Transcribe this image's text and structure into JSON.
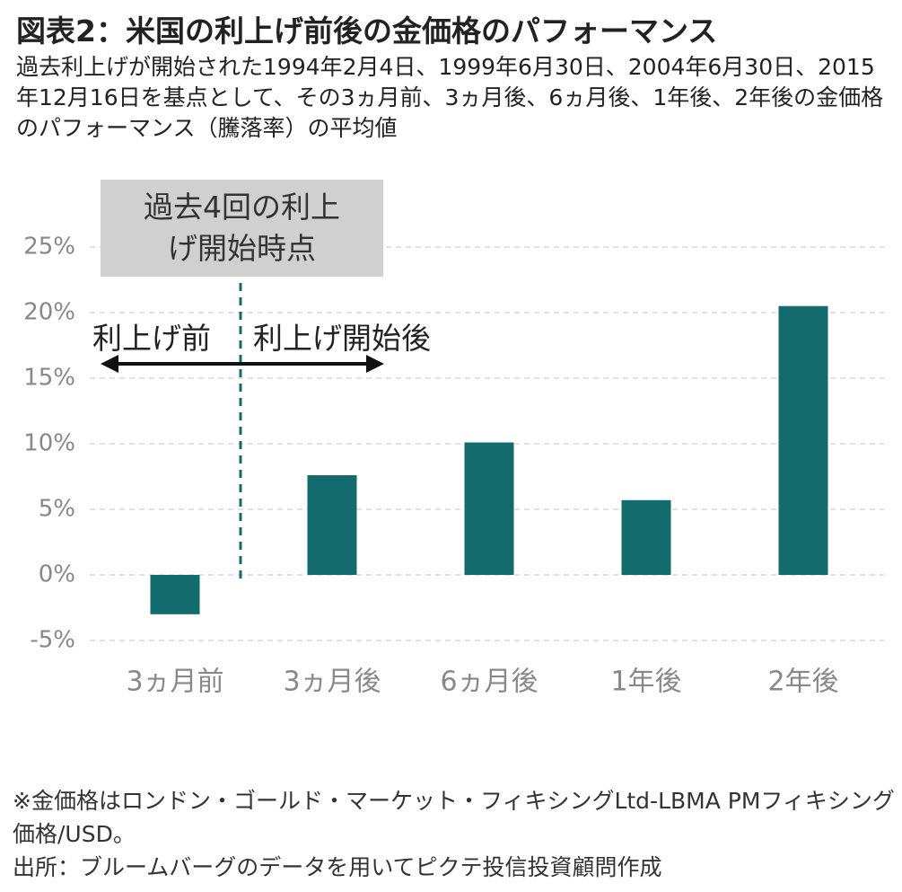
{
  "chart_data": {
    "type": "bar",
    "title": "図表2：米国の利上げ前後の金価格のパフォーマンス",
    "subtitle": "過去利上げが開始された1994年2月4日、1999年6月30日、2004年6月30日、2015年12月16日を基点として、その3ヵ月前、3ヵ月後、6ヵ月後、1年後、2年後の金価格のパフォーマンス（騰落率）の平均値",
    "categories": [
      "3ヵ月前",
      "3ヵ月後",
      "6ヵ月後",
      "1年後",
      "2年後"
    ],
    "values": [
      -3.0,
      7.6,
      10.1,
      5.7,
      20.5
    ],
    "color": "#136b6e",
    "ylim": [
      -5,
      25
    ],
    "yticks": [
      {
        "value": -5,
        "label": "-5%"
      },
      {
        "value": 0,
        "label": "0%"
      },
      {
        "value": 5,
        "label": "5%"
      },
      {
        "value": 10,
        "label": "10%"
      },
      {
        "value": 15,
        "label": "15%"
      },
      {
        "value": 20,
        "label": "20%"
      },
      {
        "value": 25,
        "label": "25%"
      }
    ],
    "grid": true,
    "annotations": {
      "event": "過去4回の利上げ開始時点",
      "before": "利上げ前",
      "after": "利上げ開始後"
    },
    "notes": [
      "※金価格はロンドン・ゴールド・マーケット・フィキシングLtd-LBMA PMフィキシング価格/USD。",
      "出所：ブルームバーグのデータを用いてピクテ投信投資顧問作成"
    ]
  }
}
